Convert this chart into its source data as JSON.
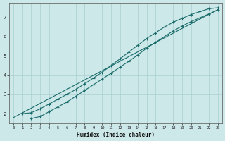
{
  "xlabel": "Humidex (Indice chaleur)",
  "ylabel": "",
  "bg_color": "#cde8e8",
  "line_color": "#1a6b6b",
  "grid_color": "#aacfcf",
  "xlim": [
    -0.5,
    23.5
  ],
  "ylim": [
    1.5,
    7.75
  ],
  "xticks": [
    0,
    1,
    2,
    3,
    4,
    5,
    6,
    7,
    8,
    9,
    10,
    11,
    12,
    13,
    14,
    15,
    16,
    17,
    18,
    19,
    20,
    21,
    22,
    23
  ],
  "yticks": [
    2,
    3,
    4,
    5,
    6,
    7
  ],
  "line1_x": [
    1,
    2,
    3,
    4,
    5,
    6,
    7,
    8,
    9,
    10,
    11,
    12,
    13,
    14,
    15,
    16,
    17,
    18,
    19,
    20,
    21,
    22,
    23
  ],
  "line1_y": [
    2.0,
    2.05,
    2.25,
    2.5,
    2.75,
    3.0,
    3.25,
    3.55,
    3.85,
    4.15,
    4.5,
    4.85,
    5.2,
    5.55,
    5.9,
    6.2,
    6.5,
    6.75,
    6.95,
    7.15,
    7.3,
    7.45,
    7.5
  ],
  "line2_x": [
    2,
    3,
    4,
    5,
    6,
    7,
    8,
    9,
    10,
    11,
    12,
    13,
    14,
    15,
    16,
    17,
    18,
    19,
    20,
    21,
    22,
    23
  ],
  "line2_y": [
    1.75,
    1.85,
    2.1,
    2.35,
    2.6,
    2.9,
    3.2,
    3.5,
    3.8,
    4.1,
    4.42,
    4.72,
    5.05,
    5.4,
    5.7,
    6.0,
    6.3,
    6.55,
    6.78,
    6.98,
    7.18,
    7.38
  ],
  "line3_x": [
    0,
    23
  ],
  "line3_y": [
    1.8,
    7.4
  ]
}
